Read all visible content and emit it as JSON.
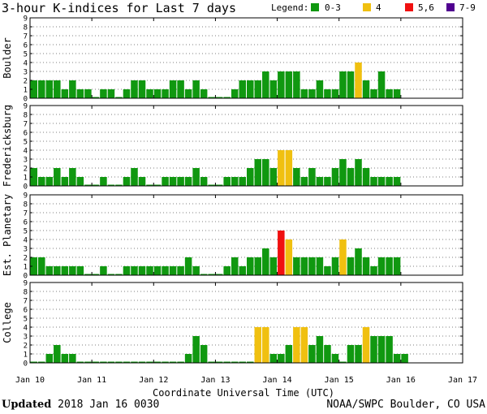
{
  "title": "3-hour K-indices for Last 7 days",
  "legend": {
    "label": "Legend:",
    "items": [
      {
        "label": "0-3",
        "color": "#109810"
      },
      {
        "label": "4",
        "color": "#f0c010"
      },
      {
        "label": "5,6",
        "color": "#f01010"
      },
      {
        "label": "7-9",
        "color": "#500090"
      }
    ]
  },
  "footer": {
    "updated_label": "Updated",
    "updated_value": "2018 Jan 16 0030",
    "source": "NOAA/SWPC Boulder, CO USA"
  },
  "chart_data": {
    "type": "bar",
    "xlabel": "Coordinate Universal Time (UTC)",
    "x_tick_labels": [
      "Jan 10",
      "Jan 11",
      "Jan 12",
      "Jan 13",
      "Jan 14",
      "Jan 15",
      "Jan 16",
      "Jan 17"
    ],
    "y_ticks": [
      0,
      1,
      2,
      3,
      4,
      5,
      6,
      7,
      8,
      9
    ],
    "ylim": [
      0,
      9
    ],
    "intervals_per_day": 8,
    "color_scale": [
      {
        "range": "0-3",
        "color": "#109810"
      },
      {
        "range": "4",
        "color": "#f0c010"
      },
      {
        "range": "5,6",
        "color": "#f01010"
      },
      {
        "range": "7-9",
        "color": "#500090"
      }
    ],
    "panels": [
      {
        "name": "Boulder",
        "values": [
          2,
          2,
          2,
          2,
          1,
          2,
          1,
          1,
          0,
          1,
          1,
          0,
          1,
          2,
          2,
          1,
          1,
          1,
          2,
          2,
          1,
          2,
          1,
          0,
          0,
          0,
          1,
          2,
          2,
          2,
          3,
          2,
          3,
          3,
          3,
          1,
          1,
          2,
          1,
          1,
          3,
          3,
          4,
          2,
          1,
          3,
          1,
          1
        ]
      },
      {
        "name": "Fredericksburg",
        "values": [
          2,
          1,
          1,
          2,
          1,
          2,
          1,
          0,
          0,
          1,
          0,
          0,
          1,
          2,
          1,
          0,
          0,
          1,
          1,
          1,
          1,
          2,
          1,
          0,
          0,
          1,
          1,
          1,
          2,
          3,
          3,
          2,
          4,
          4,
          2,
          1,
          2,
          1,
          1,
          2,
          3,
          2,
          3,
          2,
          1,
          1,
          1,
          1
        ]
      },
      {
        "name": "Est. Planetary",
        "values": [
          2,
          2,
          1,
          1,
          1,
          1,
          1,
          0,
          0,
          1,
          0,
          0,
          1,
          1,
          1,
          1,
          1,
          1,
          1,
          1,
          2,
          1,
          0,
          0,
          0,
          1,
          2,
          1,
          2,
          2,
          3,
          2,
          5,
          4,
          2,
          2,
          2,
          2,
          1,
          2,
          4,
          2,
          3,
          2,
          1,
          2,
          2,
          2
        ]
      },
      {
        "name": "College",
        "values": [
          0,
          0,
          1,
          2,
          1,
          1,
          0,
          0,
          0,
          0,
          0,
          0,
          0,
          0,
          0,
          0,
          0,
          0,
          0,
          0,
          1,
          3,
          2,
          0,
          0,
          0,
          0,
          0,
          0,
          4,
          4,
          1,
          1,
          2,
          4,
          4,
          2,
          3,
          2,
          1,
          0,
          2,
          2,
          4,
          3,
          3,
          3,
          1,
          1
        ]
      }
    ]
  }
}
